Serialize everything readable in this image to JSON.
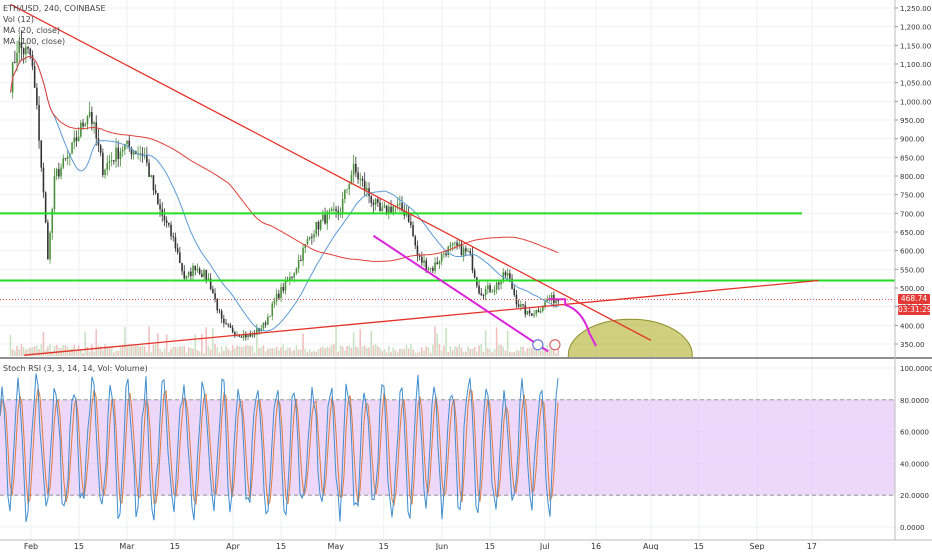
{
  "legend": {
    "symbol": "ETH/USD, 240, COINBASE",
    "vol": "Vol (12)",
    "ma1": "MA (20, close)",
    "ma2": "MA (100, close)"
  },
  "rsi_legend": "Stoch RSI (3, 3, 14, 14, Vol: Volume)",
  "price_tags": {
    "last": "468.74",
    "countdown": "03:31:29",
    "color": "#e53935"
  },
  "colors": {
    "candle_up": "#4a8f3c",
    "candle_down": "#333333",
    "ma20": "#5b9bd5",
    "ma100": "#e0403a",
    "trend": "#e53127",
    "support": "#22dd22",
    "channel": "#dd22dd",
    "ellipse_fill": "#b5b53a",
    "rsi_band": "#e6c8f8",
    "k_line": "#3e8ecf",
    "d_line": "#e07b3a"
  },
  "chart_data": [
    {
      "type": "candlestick",
      "title": "ETH/USD, 240, COINBASE",
      "x_tick_labels": [
        "Feb",
        "15",
        "Mar",
        "15",
        "Apr",
        "15",
        "May",
        "15",
        "Jun",
        "15",
        "Jul",
        "16",
        "Aug",
        "15",
        "Sep",
        "17"
      ],
      "y_tick_labels": [
        "1,250.00",
        "1,200.00",
        "1,150.00",
        "1,100.00",
        "1,050.00",
        "1,000.00",
        "950.00",
        "900.00",
        "850.00",
        "800.00",
        "750.00",
        "700.00",
        "650.00",
        "600.00",
        "550.00",
        "500.00",
        "450.00",
        "400.00",
        "350.00"
      ],
      "ylim": [
        318,
        1260
      ],
      "price_path": [
        {
          "date": "2018-01-26",
          "close": 1050
        },
        {
          "date": "2018-01-28",
          "close": 1150
        },
        {
          "date": "2018-02-01",
          "close": 1120
        },
        {
          "date": "2018-02-03",
          "close": 950
        },
        {
          "date": "2018-02-06",
          "close": 580
        },
        {
          "date": "2018-02-08",
          "close": 800
        },
        {
          "date": "2018-02-12",
          "close": 850
        },
        {
          "date": "2018-02-18",
          "close": 980
        },
        {
          "date": "2018-02-22",
          "close": 820
        },
        {
          "date": "2018-02-28",
          "close": 880
        },
        {
          "date": "2018-03-06",
          "close": 860
        },
        {
          "date": "2018-03-10",
          "close": 720
        },
        {
          "date": "2018-03-15",
          "close": 620
        },
        {
          "date": "2018-03-18",
          "close": 520
        },
        {
          "date": "2018-03-21",
          "close": 560
        },
        {
          "date": "2018-03-25",
          "close": 520
        },
        {
          "date": "2018-03-29",
          "close": 400
        },
        {
          "date": "2018-04-02",
          "close": 380
        },
        {
          "date": "2018-04-06",
          "close": 370
        },
        {
          "date": "2018-04-10",
          "close": 400
        },
        {
          "date": "2018-04-14",
          "close": 480
        },
        {
          "date": "2018-04-18",
          "close": 530
        },
        {
          "date": "2018-04-24",
          "close": 650
        },
        {
          "date": "2018-04-28",
          "close": 690
        },
        {
          "date": "2018-05-02",
          "close": 700
        },
        {
          "date": "2018-05-06",
          "close": 820
        },
        {
          "date": "2018-05-10",
          "close": 760
        },
        {
          "date": "2018-05-14",
          "close": 700
        },
        {
          "date": "2018-05-18",
          "close": 720
        },
        {
          "date": "2018-05-22",
          "close": 700
        },
        {
          "date": "2018-05-25",
          "close": 580
        },
        {
          "date": "2018-05-29",
          "close": 550
        },
        {
          "date": "2018-06-02",
          "close": 600
        },
        {
          "date": "2018-06-05",
          "close": 610
        },
        {
          "date": "2018-06-09",
          "close": 590
        },
        {
          "date": "2018-06-12",
          "close": 490
        },
        {
          "date": "2018-06-16",
          "close": 500
        },
        {
          "date": "2018-06-20",
          "close": 540
        },
        {
          "date": "2018-06-23",
          "close": 460
        },
        {
          "date": "2018-06-26",
          "close": 430
        },
        {
          "date": "2018-06-29",
          "close": 440
        },
        {
          "date": "2018-07-02",
          "close": 470
        },
        {
          "date": "2018-07-05",
          "close": 469
        }
      ],
      "annotations": [
        {
          "kind": "horizontal_line",
          "price": 700,
          "color": "#22dd22"
        },
        {
          "kind": "horizontal_line",
          "price": 520,
          "color": "#22dd22"
        },
        {
          "kind": "trend_line",
          "from": {
            "date": "2018-01-26",
            "price": 1260
          },
          "to": {
            "date": "2018-08-01",
            "price": 360
          },
          "color": "#e53127"
        },
        {
          "kind": "trend_line",
          "from": {
            "date": "2018-01-30",
            "price": 320
          },
          "to": {
            "date": "2018-09-19",
            "price": 520
          },
          "color": "#e53127"
        },
        {
          "kind": "trend_line",
          "from": {
            "date": "2018-05-12",
            "price": 640
          },
          "to": {
            "date": "2018-07-02",
            "price": 330
          },
          "color": "#dd22dd"
        },
        {
          "kind": "projection_path",
          "color": "#dd22dd"
        },
        {
          "kind": "ellipse",
          "center": {
            "date": "2018-07-26",
            "price": 320
          },
          "color": "#b5b53a"
        },
        {
          "kind": "horizontal_line_dotted",
          "price": 469,
          "color": "#e53935"
        }
      ],
      "last_price": 468.74
    },
    {
      "type": "line",
      "title": "Stoch RSI (3, 3, 14, 14, Vol: Volume)",
      "y_tick_labels": [
        "100.0000",
        "80.0000",
        "60.0000",
        "40.0000",
        "20.0000",
        "0.0000"
      ],
      "ylim": [
        -5,
        103
      ],
      "band": [
        20,
        80
      ],
      "series": [
        {
          "name": "K"
        },
        {
          "name": "D"
        }
      ]
    }
  ]
}
